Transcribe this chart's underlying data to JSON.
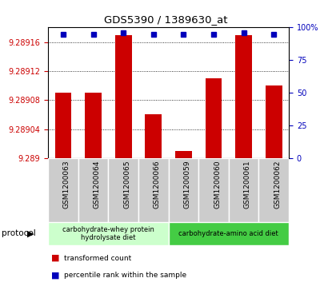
{
  "title": "GDS5390 / 1389630_at",
  "samples": [
    "GSM1200063",
    "GSM1200064",
    "GSM1200065",
    "GSM1200066",
    "GSM1200059",
    "GSM1200060",
    "GSM1200061",
    "GSM1200062"
  ],
  "transformed_counts": [
    9.28909,
    9.28909,
    9.28917,
    9.28906,
    9.28901,
    9.28911,
    9.28917,
    9.2891
  ],
  "percentile_ranks": [
    95,
    95,
    96,
    95,
    95,
    95,
    96,
    95
  ],
  "ylim_left": [
    9.289,
    9.28918
  ],
  "ylim_right": [
    0,
    100
  ],
  "yticks_left": [
    9.289,
    9.28904,
    9.28908,
    9.28912,
    9.28916
  ],
  "yticks_right": [
    0,
    25,
    50,
    75,
    100
  ],
  "bar_color": "#cc0000",
  "dot_color": "#0000bb",
  "protocol_groups": [
    {
      "label": "carbohydrate-whey protein\nhydrolysate diet",
      "start": 0,
      "end": 4,
      "color": "#ccffcc"
    },
    {
      "label": "carbohydrate-amino acid diet",
      "start": 4,
      "end": 8,
      "color": "#44cc44"
    }
  ],
  "legend_items": [
    {
      "color": "#cc0000",
      "label": "transformed count"
    },
    {
      "color": "#0000bb",
      "label": "percentile rank within the sample"
    }
  ],
  "plot_bg_color": "#ffffff",
  "sample_box_color": "#cccccc",
  "bar_width": 0.55,
  "fig_bg": "#ffffff"
}
